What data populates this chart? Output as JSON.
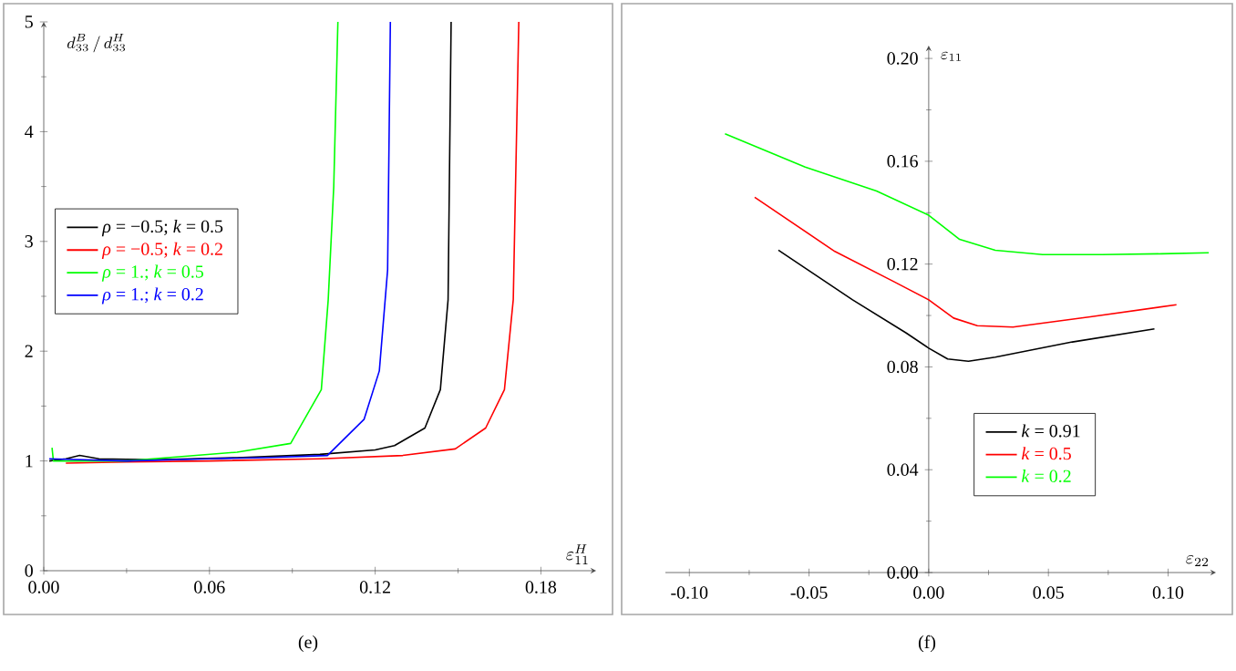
{
  "chart_data": [
    {
      "type": "line",
      "xlabel": "\\varepsilon_{11}^{H}",
      "ylabel": "d_{33}^{B}\\,/\\,d_{33}^{H}",
      "xlim": [
        0,
        0.2
      ],
      "ylim": [
        0,
        5
      ],
      "xticks": [
        {
          "value": 0,
          "label": "0.00"
        },
        {
          "value": 0.06,
          "label": "0.06"
        },
        {
          "value": 0.12,
          "label": "0.12"
        },
        {
          "value": 0.18,
          "label": "0.18"
        }
      ],
      "yticks": [
        0,
        1,
        2,
        3,
        4,
        5
      ],
      "legend": "center left",
      "annotations": [
        "(e)"
      ],
      "series": [
        {
          "name": "*ρ* = −0.5; *k* = 0.5",
          "color": "#000000",
          "x": [
            0.002,
            0.008,
            0.013,
            0.02,
            0.04,
            0.07,
            0.1,
            0.12,
            0.127,
            0.138,
            0.1436,
            0.1464,
            0.1475
          ],
          "values": [
            1.0,
            1.02,
            1.05,
            1.02,
            1.01,
            1.03,
            1.06,
            1.1,
            1.14,
            1.3,
            1.65,
            2.47,
            5
          ]
        },
        {
          "name": "*ρ* = −0.5; *k* = 0.2",
          "color": "#ff0000",
          "x": [
            0.008,
            0.03,
            0.06,
            0.1,
            0.13,
            0.149,
            0.16,
            0.1668,
            0.17,
            0.172
          ],
          "values": [
            0.98,
            0.99,
            1.0,
            1.02,
            1.05,
            1.11,
            1.3,
            1.65,
            2.47,
            5
          ]
        },
        {
          "name": "*ρ* = 1.; *k* = 0.5",
          "color": "#00ff00",
          "x": [
            0.003,
            0.0035,
            0.005,
            0.03,
            0.05,
            0.07,
            0.0894,
            0.1005,
            0.103,
            0.105,
            0.1065
          ],
          "values": [
            1.12,
            1.0,
            1.0,
            1.0,
            1.04,
            1.08,
            1.16,
            1.65,
            2.47,
            3.5,
            5
          ]
        },
        {
          "name": "*ρ* = 1.; *k* = 0.2",
          "color": "#0000ff",
          "x": [
            0.002,
            0.03,
            0.06,
            0.08,
            0.1027,
            0.116,
            0.1215,
            0.1245,
            0.1255
          ],
          "values": [
            1.02,
            1.0,
            1.02,
            1.03,
            1.05,
            1.38,
            1.82,
            2.74,
            5
          ]
        }
      ]
    },
    {
      "type": "line",
      "xlabel": "\\varepsilon_{22}",
      "ylabel": "\\varepsilon_{11}",
      "xlim": [
        -0.11,
        0.12
      ],
      "ylim": [
        0,
        0.205
      ],
      "xticks": [
        {
          "value": -0.1,
          "label": "-0.10"
        },
        {
          "value": -0.05,
          "label": "-0.05"
        },
        {
          "value": 0,
          "label": "0.00"
        },
        {
          "value": 0.05,
          "label": "0.05"
        },
        {
          "value": 0.1,
          "label": "0.10"
        }
      ],
      "yticks": [
        {
          "value": 0,
          "label": "0.00"
        },
        {
          "value": 0.04,
          "label": "0.04"
        },
        {
          "value": 0.08,
          "label": "0.08"
        },
        {
          "value": 0.12,
          "label": "0.12"
        },
        {
          "value": 0.16,
          "label": "0.16"
        },
        {
          "value": 0.2,
          "label": "0.20"
        }
      ],
      "legend": "bottom right",
      "annotations": [
        "(f)"
      ],
      "series": [
        {
          "name": "*k* = 0.91",
          "color": "#000000",
          "x": [
            -0.0628,
            -0.0318,
            -0.0094,
            0,
            0.0079,
            0.0166,
            0.0278,
            0.06,
            0.0943
          ],
          "values": [
            0.1254,
            0.1061,
            0.0932,
            0.0873,
            0.0831,
            0.0822,
            0.0838,
            0.0897,
            0.0948
          ]
        },
        {
          "name": "*k* = 0.5",
          "color": "#ff0000",
          "x": [
            -0.0727,
            -0.0392,
            -0.0144,
            0,
            0.0104,
            0.0203,
            0.0352,
            0.0675,
            0.1035
          ],
          "values": [
            0.146,
            0.1249,
            0.1131,
            0.1061,
            0.099,
            0.096,
            0.0955,
            0.0995,
            0.1042
          ]
        },
        {
          "name": "*k* = 0.2",
          "color": "#00ff00",
          "x": [
            -0.0851,
            -0.0516,
            -0.0218,
            0,
            0.0129,
            0.0278,
            0.0476,
            0.0725,
            0.0973,
            0.117
          ],
          "values": [
            0.1707,
            0.1577,
            0.1484,
            0.139,
            0.1296,
            0.1254,
            0.1237,
            0.1237,
            0.124,
            0.1244
          ]
        }
      ]
    }
  ]
}
